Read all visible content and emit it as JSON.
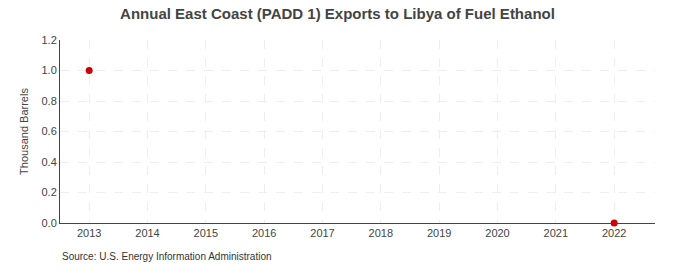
{
  "chart_data": {
    "type": "scatter",
    "title": "Annual East Coast (PADD 1) Exports to Libya of Fuel Ethanol",
    "ylabel": "Thousand Barrels",
    "annotations": [
      "Source: U.S. Energy Information Administration"
    ],
    "x": [
      2013,
      2022
    ],
    "values": [
      1.0,
      0.0
    ],
    "color": "#cc0000",
    "marker": "circle",
    "xlim": [
      2012.5,
      2022.7
    ],
    "xticks": [
      2013,
      2014,
      2015,
      2016,
      2017,
      2018,
      2019,
      2020,
      2021,
      2022
    ],
    "ylim": [
      0.0,
      1.2
    ],
    "yticks": [
      {
        "value": 0.0,
        "label": "0.0"
      },
      0.2,
      0.4,
      0.6,
      0.8,
      {
        "value": 1.0,
        "label": "1.0"
      },
      1.2
    ],
    "grid": true
  }
}
